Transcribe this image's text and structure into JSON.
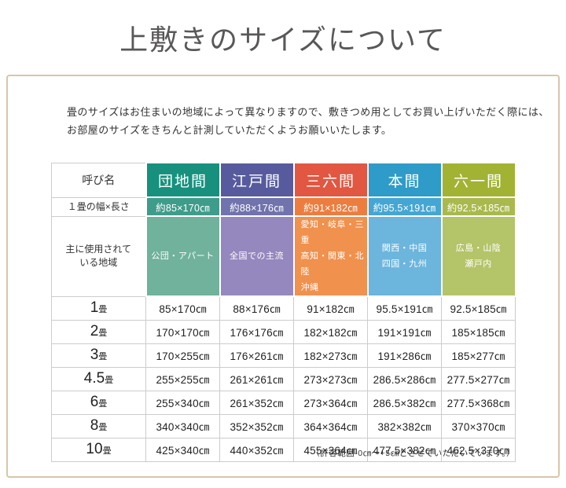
{
  "page": {
    "title": "上敷きのサイズについて",
    "title_color": "#595757",
    "frame_border_color": "#d9c5a8",
    "intro_line1": "畳のサイズはお住まいの地域によって異なりますので、敷きつめ用としてお買い上げいただく際には、",
    "intro_line2": "お部屋のサイズをきちんと計測していただくようお願いいたします。",
    "footnote": "（許容範囲-0㎝～+5㎝とさせていただいています。）"
  },
  "table": {
    "corner_label": "呼び名",
    "size_row_label": "１畳の幅×長さ",
    "region_row_label_line1": "主に使用されて",
    "region_row_label_line2": "いる地域",
    "grid_line_color": "#cccccc",
    "columns": [
      {
        "name": "団地間",
        "colors": {
          "header": "#17917e",
          "size": "#3f9c8a",
          "region": "#70b29b"
        },
        "size": "約85×170㎝",
        "region": [
          "公団・アパート"
        ],
        "cells": [
          "85×170㎝",
          "170×170㎝",
          "170×255㎝",
          "255×255㎝",
          "255×340㎝",
          "340×340㎝",
          "425×340㎝"
        ]
      },
      {
        "name": "江戸間",
        "colors": {
          "header": "#575b9e",
          "size": "#7073ac",
          "region": "#9588be"
        },
        "size": "約88×176㎝",
        "region": [
          "全国での主流"
        ],
        "cells": [
          "88×176㎝",
          "176×176㎝",
          "176×261㎝",
          "261×261㎝",
          "261×352㎝",
          "352×352㎝",
          "440×352㎝"
        ]
      },
      {
        "name": "三六間",
        "colors": {
          "header": "#e25742",
          "size": "#ec7d3f",
          "region": "#f0914e"
        },
        "size": "約91×182㎝",
        "region": [
          "愛知・岐阜・三重",
          "高知・関東・北陸",
          "沖縄"
        ],
        "cells": [
          "91×182㎝",
          "182×182㎝",
          "182×273㎝",
          "273×273㎝",
          "273×364㎝",
          "364×364㎝",
          "455×364㎝"
        ]
      },
      {
        "name": "本間",
        "colors": {
          "header": "#2e9bc9",
          "size": "#45a6d3",
          "region": "#6cb5dd"
        },
        "size": "約95.5×191㎝",
        "region": [
          "関西・中国",
          "四国・九州"
        ],
        "cells": [
          "95.5×191㎝",
          "191×191㎝",
          "191×286㎝",
          "286.5×286㎝",
          "286.5×382㎝",
          "382×382㎝",
          "477.5×382㎝"
        ]
      },
      {
        "name": "六一間",
        "colors": {
          "header": "#a2b233",
          "size": "#a9b94d",
          "region": "#b4c468"
        },
        "size": "約92.5×185㎝",
        "region": [
          "広島・山陰",
          "瀬戸内"
        ],
        "cells": [
          "92.5×185㎝",
          "185×185㎝",
          "185×277㎝",
          "277.5×277㎝",
          "277.5×368㎝",
          "370×370㎝",
          "462.5×370㎝"
        ]
      }
    ],
    "rows": [
      {
        "num": "1",
        "unit": "畳"
      },
      {
        "num": "2",
        "unit": "畳"
      },
      {
        "num": "3",
        "unit": "畳"
      },
      {
        "num": "4.5",
        "unit": "畳"
      },
      {
        "num": "6",
        "unit": "畳"
      },
      {
        "num": "8",
        "unit": "畳"
      },
      {
        "num": "10",
        "unit": "畳"
      }
    ]
  }
}
